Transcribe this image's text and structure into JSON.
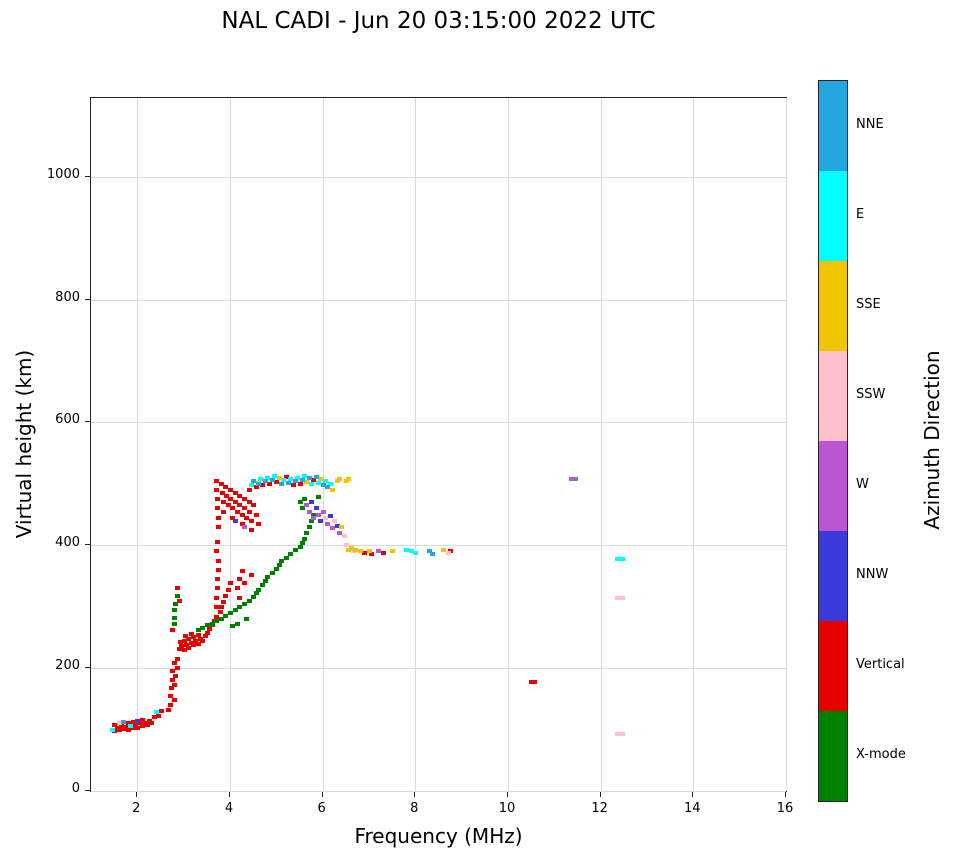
{
  "title": "NAL CADI - Jun 20 03:15:00 2022 UTC",
  "axes": {
    "x_label": "Frequency (MHz)",
    "y_label": "Virtual height (km)",
    "x_range": [
      1,
      16
    ],
    "y_range": [
      0,
      1128
    ],
    "x_ticks": [
      2,
      4,
      6,
      8,
      10,
      12,
      14,
      16
    ],
    "y_ticks": [
      0,
      200,
      400,
      600,
      800,
      1000
    ]
  },
  "colorbar": {
    "label": "Azimuth Direction",
    "segments_top_to_bottom": [
      {
        "label": "NNE",
        "color": "#24a7de"
      },
      {
        "label": "E",
        "color": "#00ffff"
      },
      {
        "label": "SSE",
        "color": "#f0c400"
      },
      {
        "label": "SSW",
        "color": "#ffc0cb"
      },
      {
        "label": "W",
        "color": "#ba55d3"
      },
      {
        "label": "NNW",
        "color": "#3b3bdb"
      },
      {
        "label": "Vertical",
        "color": "#e60000"
      },
      {
        "label": "X-mode",
        "color": "#008000"
      }
    ]
  },
  "chart_data": {
    "type": "scatter",
    "title": "NAL CADI - Jun 20 03:15:00 2022 UTC",
    "xlabel": "Frequency (MHz)",
    "ylabel": "Virtual height (km)",
    "xlim": [
      1,
      16
    ],
    "ylim": [
      0,
      1128
    ],
    "grid": true,
    "legend_position": "right-colorbar",
    "legend": [
      "NNE",
      "E",
      "SSE",
      "SSW",
      "W",
      "NNW",
      "Vertical",
      "X-mode"
    ],
    "series": [
      {
        "name": "Vertical",
        "color": "#e60000",
        "points": [
          [
            1.5,
            97
          ],
          [
            1.5,
            107
          ],
          [
            1.55,
            103
          ],
          [
            1.6,
            99
          ],
          [
            1.65,
            106
          ],
          [
            1.7,
            101
          ],
          [
            1.75,
            104
          ],
          [
            1.8,
            99
          ],
          [
            1.8,
            110
          ],
          [
            1.9,
            102
          ],
          [
            1.9,
            113
          ],
          [
            1.95,
            108
          ],
          [
            2.0,
            103
          ],
          [
            2.05,
            110
          ],
          [
            2.1,
            106
          ],
          [
            2.1,
            116
          ],
          [
            2.15,
            111
          ],
          [
            2.2,
            108
          ],
          [
            2.25,
            114
          ],
          [
            2.3,
            110
          ],
          [
            2.35,
            120
          ],
          [
            2.45,
            122
          ],
          [
            2.5,
            130
          ],
          [
            2.65,
            132
          ],
          [
            2.7,
            140
          ],
          [
            2.7,
            155
          ],
          [
            2.72,
            168
          ],
          [
            2.75,
            180
          ],
          [
            2.75,
            195
          ],
          [
            2.78,
            208
          ],
          [
            2.8,
            148
          ],
          [
            2.8,
            172
          ],
          [
            2.82,
            188
          ],
          [
            2.85,
            200
          ],
          [
            2.85,
            215
          ],
          [
            2.75,
            262
          ],
          [
            2.85,
            330
          ],
          [
            2.9,
            310
          ],
          [
            2.9,
            232
          ],
          [
            2.92,
            242
          ],
          [
            2.95,
            236
          ],
          [
            3.0,
            230
          ],
          [
            3.0,
            244
          ],
          [
            3.02,
            252
          ],
          [
            3.05,
            238
          ],
          [
            3.1,
            233
          ],
          [
            3.1,
            247
          ],
          [
            3.15,
            241
          ],
          [
            3.15,
            255
          ],
          [
            3.2,
            237
          ],
          [
            3.2,
            250
          ],
          [
            3.25,
            244
          ],
          [
            3.3,
            240
          ],
          [
            3.3,
            254
          ],
          [
            3.35,
            248
          ],
          [
            3.4,
            244
          ],
          [
            3.45,
            252
          ],
          [
            3.5,
            258
          ],
          [
            3.55,
            264
          ],
          [
            3.6,
            270
          ],
          [
            3.65,
            277
          ],
          [
            3.7,
            284
          ],
          [
            3.7,
            300
          ],
          [
            3.7,
            315
          ],
          [
            3.72,
            330
          ],
          [
            3.72,
            345
          ],
          [
            3.75,
            360
          ],
          [
            3.75,
            375
          ],
          [
            3.7,
            390
          ],
          [
            3.72,
            405
          ],
          [
            3.78,
            292
          ],
          [
            3.8,
            300
          ],
          [
            3.85,
            308
          ],
          [
            3.9,
            318
          ],
          [
            3.95,
            328
          ],
          [
            4.0,
            338
          ],
          [
            4.15,
            330
          ],
          [
            4.2,
            345
          ],
          [
            4.25,
            358
          ],
          [
            4.3,
            338
          ],
          [
            4.45,
            352
          ],
          [
            4.2,
            315
          ],
          [
            3.7,
            505
          ],
          [
            3.7,
            490
          ],
          [
            3.72,
            475
          ],
          [
            3.72,
            460
          ],
          [
            3.75,
            445
          ],
          [
            3.75,
            430
          ],
          [
            3.8,
            500
          ],
          [
            3.82,
            485
          ],
          [
            3.85,
            470
          ],
          [
            3.85,
            455
          ],
          [
            3.9,
            495
          ],
          [
            3.92,
            480
          ],
          [
            3.95,
            465
          ],
          [
            4.0,
            490
          ],
          [
            4.0,
            475
          ],
          [
            4.05,
            460
          ],
          [
            4.05,
            445
          ],
          [
            4.1,
            485
          ],
          [
            4.1,
            470
          ],
          [
            4.15,
            455
          ],
          [
            4.2,
            480
          ],
          [
            4.2,
            465
          ],
          [
            4.25,
            450
          ],
          [
            4.25,
            435
          ],
          [
            4.3,
            475
          ],
          [
            4.3,
            460
          ],
          [
            4.35,
            445
          ],
          [
            4.4,
            470
          ],
          [
            4.4,
            455
          ],
          [
            4.45,
            440
          ],
          [
            4.45,
            425
          ],
          [
            4.5,
            465
          ],
          [
            4.55,
            450
          ],
          [
            4.6,
            435
          ],
          [
            4.4,
            490
          ],
          [
            4.55,
            495
          ],
          [
            4.7,
            498
          ],
          [
            4.85,
            500
          ],
          [
            5.0,
            503
          ],
          [
            5.2,
            511
          ],
          [
            5.35,
            498
          ],
          [
            5.5,
            500
          ],
          [
            5.8,
            506
          ],
          [
            6.9,
            388
          ],
          [
            7.05,
            386
          ],
          [
            7.3,
            388
          ],
          [
            8.75,
            390
          ],
          [
            10.5,
            178
          ],
          [
            10.55,
            178
          ]
        ]
      },
      {
        "name": "X-mode",
        "color": "#008000",
        "points": [
          [
            2.78,
            272
          ],
          [
            2.8,
            282
          ],
          [
            2.8,
            295
          ],
          [
            2.82,
            305
          ],
          [
            2.85,
            318
          ],
          [
            3.3,
            262
          ],
          [
            3.4,
            266
          ],
          [
            3.5,
            270
          ],
          [
            3.6,
            272
          ],
          [
            3.7,
            276
          ],
          [
            3.8,
            280
          ],
          [
            3.9,
            285
          ],
          [
            4.0,
            290
          ],
          [
            4.05,
            268
          ],
          [
            4.1,
            295
          ],
          [
            4.15,
            272
          ],
          [
            4.2,
            300
          ],
          [
            4.3,
            305
          ],
          [
            4.35,
            280
          ],
          [
            4.4,
            310
          ],
          [
            4.5,
            316
          ],
          [
            4.55,
            322
          ],
          [
            4.6,
            328
          ],
          [
            4.7,
            335
          ],
          [
            4.75,
            342
          ],
          [
            4.8,
            348
          ],
          [
            4.9,
            355
          ],
          [
            5.0,
            362
          ],
          [
            5.05,
            368
          ],
          [
            5.1,
            374
          ],
          [
            5.2,
            380
          ],
          [
            5.3,
            386
          ],
          [
            5.4,
            392
          ],
          [
            5.5,
            398
          ],
          [
            5.55,
            403
          ],
          [
            5.6,
            410
          ],
          [
            5.65,
            420
          ],
          [
            5.7,
            430
          ],
          [
            5.75,
            440
          ],
          [
            5.8,
            450
          ],
          [
            5.5,
            470
          ],
          [
            5.55,
            460
          ],
          [
            5.6,
            475
          ],
          [
            5.9,
            478
          ]
        ]
      },
      {
        "name": "NNW",
        "color": "#3b3bdb",
        "points": [
          [
            2.0,
            114
          ],
          [
            4.1,
            440
          ],
          [
            5.75,
            470
          ],
          [
            5.85,
            460
          ],
          [
            5.95,
            440
          ],
          [
            6.15,
            448
          ],
          [
            6.3,
            432
          ]
        ]
      },
      {
        "name": "W",
        "color": "#ba55d3",
        "points": [
          [
            4.3,
            430
          ],
          [
            5.65,
            465
          ],
          [
            5.7,
            455
          ],
          [
            5.8,
            445
          ],
          [
            5.9,
            450
          ],
          [
            6.0,
            455
          ],
          [
            6.1,
            435
          ],
          [
            6.2,
            428
          ],
          [
            6.35,
            420
          ],
          [
            7.2,
            390
          ],
          [
            11.35,
            508
          ],
          [
            11.45,
            508
          ]
        ]
      },
      {
        "name": "SSW",
        "color": "#ffc0cb",
        "points": [
          [
            1.6,
            110
          ],
          [
            6.05,
            445
          ],
          [
            6.25,
            440
          ],
          [
            6.45,
            415
          ],
          [
            6.5,
            400
          ],
          [
            6.65,
            390
          ],
          [
            8.7,
            388
          ],
          [
            12.35,
            315
          ],
          [
            12.45,
            315
          ],
          [
            12.35,
            93
          ],
          [
            12.45,
            93
          ]
        ]
      },
      {
        "name": "SSE",
        "color": "#f0c400",
        "points": [
          [
            4.6,
            502
          ],
          [
            5.05,
            509
          ],
          [
            5.65,
            503
          ],
          [
            5.95,
            508
          ],
          [
            6.2,
            490
          ],
          [
            6.3,
            505
          ],
          [
            6.35,
            508
          ],
          [
            6.5,
            505
          ],
          [
            6.55,
            508
          ],
          [
            6.4,
            430
          ],
          [
            6.55,
            392
          ],
          [
            6.6,
            396
          ],
          [
            6.7,
            393
          ],
          [
            6.8,
            390
          ],
          [
            7.0,
            390
          ],
          [
            7.5,
            390
          ],
          [
            8.6,
            392
          ]
        ]
      },
      {
        "name": "E",
        "color": "#00ffff",
        "points": [
          [
            1.45,
            100
          ],
          [
            1.85,
            106
          ],
          [
            2.4,
            128
          ],
          [
            4.45,
            498
          ],
          [
            4.65,
            508
          ],
          [
            4.8,
            510
          ],
          [
            4.95,
            512
          ],
          [
            5.15,
            506
          ],
          [
            5.3,
            508
          ],
          [
            5.45,
            510
          ],
          [
            5.6,
            512
          ],
          [
            5.75,
            500
          ],
          [
            5.9,
            502
          ],
          [
            6.05,
            504
          ],
          [
            6.15,
            500
          ],
          [
            7.8,
            392
          ],
          [
            7.9,
            390
          ],
          [
            8.0,
            388
          ],
          [
            12.35,
            378
          ],
          [
            12.45,
            378
          ]
        ]
      },
      {
        "name": "NNE",
        "color": "#24a7de",
        "points": [
          [
            1.7,
            112
          ],
          [
            4.5,
            505
          ],
          [
            4.6,
            500
          ],
          [
            4.75,
            505
          ],
          [
            4.9,
            507
          ],
          [
            5.1,
            500
          ],
          [
            5.25,
            502
          ],
          [
            5.4,
            505
          ],
          [
            5.55,
            507
          ],
          [
            5.7,
            509
          ],
          [
            5.85,
            511
          ],
          [
            6.0,
            498
          ],
          [
            6.1,
            495
          ],
          [
            8.3,
            390
          ],
          [
            8.35,
            386
          ]
        ]
      }
    ]
  }
}
